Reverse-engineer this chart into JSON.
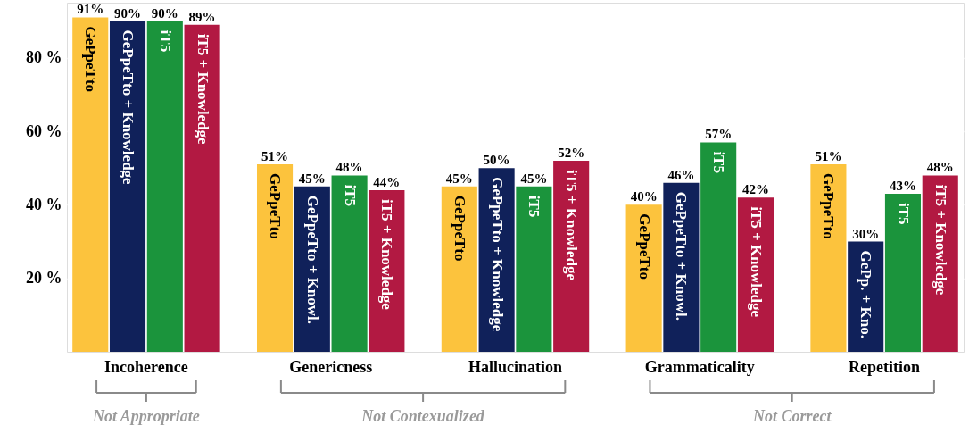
{
  "chart_data": {
    "type": "bar",
    "categories": [
      "Incoherence",
      "Genericness",
      "Hallucination",
      "Grammaticality",
      "Repetition"
    ],
    "series": [
      {
        "name": "GePpeTto",
        "color": "#fcc33d",
        "values": [
          91,
          51,
          45,
          40,
          51
        ],
        "value_labels": [
          "91%",
          "51%",
          "45%",
          "40%",
          "51%"
        ]
      },
      {
        "name": "GePpeTto + Knowledge",
        "color": "#10215a",
        "values": [
          90,
          45,
          50,
          46,
          30
        ],
        "value_labels": [
          "90%",
          "45%",
          "50%",
          "46%",
          "30%"
        ]
      },
      {
        "name": "iT5",
        "color": "#1b943c",
        "values": [
          90,
          48,
          45,
          57,
          43
        ],
        "value_labels": [
          "90%",
          "48%",
          "45%",
          "57%",
          "43%"
        ]
      },
      {
        "name": "iT5 + Knowledge",
        "color": "#b21942",
        "values": [
          89,
          44,
          52,
          42,
          48
        ],
        "value_labels": [
          "89%",
          "44%",
          "52%",
          "42%",
          "48%"
        ]
      }
    ],
    "ylim": [
      0,
      95
    ],
    "yticks": [
      {
        "value": 20,
        "label": "20 %"
      },
      {
        "value": 40,
        "label": "40 %"
      },
      {
        "value": 60,
        "label": "60 %"
      },
      {
        "value": 80,
        "label": "80 %"
      }
    ],
    "grid": "y",
    "annotations": [
      {
        "text": "GePpeTto + Knowl.",
        "x": "Genericness",
        "y": 45
      },
      {
        "text": "GePpeTto + Knowl.",
        "x": "Grammaticality",
        "y": 46
      },
      {
        "text": "GePp. + Kno.",
        "x": "Repetition",
        "y": 30
      },
      "Not Appropriate",
      "Not Contexualized",
      "Not Correct"
    ]
  }
}
